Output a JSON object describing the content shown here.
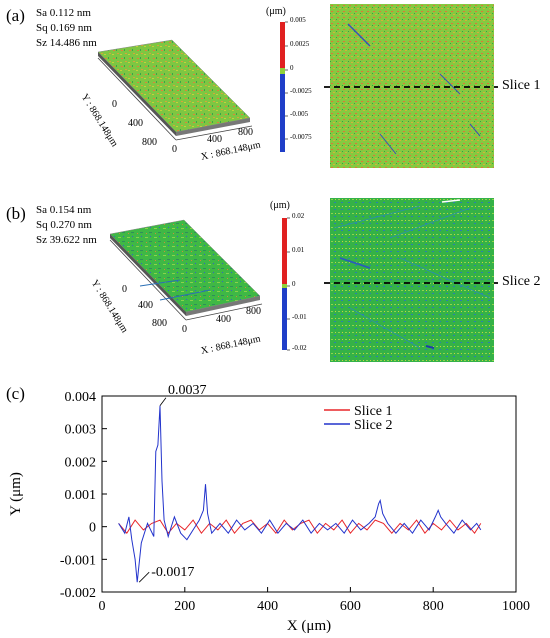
{
  "panel_a": {
    "label": "(a)",
    "stats": [
      "Sa 0.112 nm",
      "Sq 0.169 nm",
      "Sz 14.486 nm"
    ],
    "y_axis_label": "Y : 868.148μm",
    "x_axis_label": "X : 868.148μm",
    "y_ticks": [
      "0",
      "400",
      "800"
    ],
    "x_ticks": [
      "0",
      "400",
      "800"
    ],
    "colorbar_unit": "(μm)",
    "colorbar_ticks": [
      "0.005",
      "0.0025",
      "0",
      "-0.0025",
      "-0.005",
      "-0.0075"
    ],
    "slice_label": "Slice 1"
  },
  "panel_b": {
    "label": "(b)",
    "stats": [
      "Sa 0.154 nm",
      "Sq 0.270 nm",
      "Sz 39.622 nm"
    ],
    "y_axis_label": "Y : 868.148μm",
    "x_axis_label": "X : 868.148μm",
    "y_ticks": [
      "0",
      "400",
      "800"
    ],
    "x_ticks": [
      "0",
      "400",
      "800"
    ],
    "colorbar_unit": "(μm)",
    "colorbar_ticks": [
      "0.02",
      "0.01",
      "0",
      "-0.01",
      "-0.02"
    ],
    "slice_label": "Slice 2"
  },
  "panel_c": {
    "label": "(c)"
  },
  "chart_data": {
    "type": "line",
    "xlabel": "X (μm)",
    "ylabel": "Y (μm)",
    "xlim": [
      0,
      1000
    ],
    "ylim": [
      -0.002,
      0.004
    ],
    "x_ticks": [
      0,
      200,
      400,
      600,
      800,
      1000
    ],
    "y_ticks": [
      -0.002,
      -0.001,
      0,
      0.001,
      0.002,
      0.003,
      0.004
    ],
    "y_tick_labels": [
      "-0.002",
      "-0.001",
      "0",
      "0.001",
      "0.002",
      "0.003",
      "0.004"
    ],
    "legend_position": "top-right",
    "annotations": [
      {
        "text": "0.0037",
        "x": 140,
        "y": 0.0037
      },
      {
        "text": "-0.0017",
        "x": 85,
        "y": -0.0017
      }
    ],
    "series": [
      {
        "name": "Slice 1",
        "color": "#e8262a",
        "x": [
          40,
          60,
          80,
          100,
          120,
          140,
          160,
          180,
          200,
          220,
          240,
          260,
          280,
          300,
          320,
          340,
          360,
          380,
          400,
          420,
          440,
          460,
          480,
          500,
          520,
          540,
          560,
          580,
          600,
          620,
          640,
          660,
          680,
          700,
          720,
          740,
          760,
          780,
          800,
          820,
          840,
          860,
          880,
          900,
          915
        ],
        "y": [
          0.0001,
          -0.0002,
          0.0002,
          -0.0001,
          0.0001,
          0.0002,
          -0.0002,
          0.0001,
          -0.0001,
          0.0002,
          -0.0002,
          0.0001,
          -0.0001,
          0.0002,
          -0.0002,
          0.0001,
          0.0002,
          -0.0001,
          0.0001,
          -0.0002,
          0.0002,
          -0.0001,
          0.0001,
          0.0002,
          -0.0002,
          0.0001,
          -0.0001,
          0.0002,
          -0.0002,
          0.0001,
          -0.0001,
          0.0002,
          0.0001,
          -0.0002,
          0.0001,
          -0.0001,
          0.0002,
          -0.0002,
          0.0001,
          -0.0001,
          0.0002,
          -0.0001,
          0.0001,
          -0.0002,
          0.0001
        ]
      },
      {
        "name": "Slice 2",
        "color": "#2233cc",
        "x": [
          40,
          55,
          65,
          72,
          80,
          85,
          95,
          110,
          125,
          130,
          135,
          140,
          145,
          150,
          160,
          175,
          190,
          205,
          220,
          235,
          245,
          250,
          255,
          265,
          285,
          305,
          325,
          345,
          365,
          385,
          405,
          425,
          445,
          465,
          485,
          505,
          525,
          545,
          565,
          585,
          605,
          625,
          645,
          660,
          668,
          672,
          678,
          690,
          710,
          730,
          750,
          770,
          790,
          805,
          812,
          818,
          830,
          850,
          870,
          890,
          905,
          915
        ],
        "y": [
          0.0001,
          -0.0002,
          0.0003,
          -0.0004,
          -0.001,
          -0.0017,
          -0.0005,
          0.0001,
          -0.0003,
          0.0023,
          0.0025,
          0.0037,
          0.0014,
          0.0002,
          -0.0003,
          0.0003,
          -0.0002,
          -0.0004,
          -0.0001,
          0.0002,
          0.0005,
          0.0013,
          0.0004,
          -0.0002,
          0.0001,
          -0.0002,
          0.0002,
          -0.0001,
          0.0001,
          -0.0002,
          0.0002,
          -0.0002,
          0.0001,
          -0.0001,
          0.0002,
          -0.0002,
          0.0001,
          -0.0001,
          0.0001,
          -0.0002,
          0.0002,
          -0.0001,
          0.0001,
          0.0003,
          0.0007,
          0.0008,
          0.0004,
          0.0001,
          -0.0002,
          0.0001,
          -0.0002,
          0.0002,
          -0.0001,
          0.0003,
          0.0005,
          0.0003,
          0.0001,
          -0.0002,
          0.0002,
          -0.0001,
          0.0001,
          -0.0001
        ]
      }
    ]
  }
}
